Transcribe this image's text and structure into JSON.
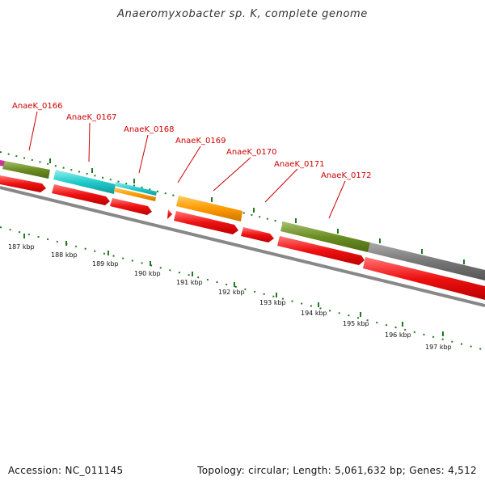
{
  "title": "Anaeromyxobacter sp. K, complete genome",
  "footer": {
    "accession": "Accession: NC_011145",
    "topology": "Topology: circular; Length: 5,061,632 bp; Genes: 4,512"
  },
  "gene_labels": [
    "AnaeK_0166",
    "AnaeK_0167",
    "AnaeK_0168",
    "AnaeK_0169",
    "AnaeK_0170",
    "AnaeK_0171",
    "AnaeK_0172"
  ],
  "kbp_ticks": [
    "187 kbp",
    "188 kbp",
    "189 kbp",
    "190 kbp",
    "191 kbp",
    "192 kbp",
    "193 kbp",
    "194 kbp",
    "195 kbp",
    "196 kbp",
    "197 kbp"
  ],
  "colors": {
    "label_red": "#cc0000",
    "cds_red": "#ee1111",
    "cyan": "#22cccc",
    "orange": "#ff9900",
    "olive": "#6b8e23",
    "gray": "#777777",
    "magenta": "#cc3399",
    "gc_green": "#227722",
    "backbone": "#888888"
  }
}
